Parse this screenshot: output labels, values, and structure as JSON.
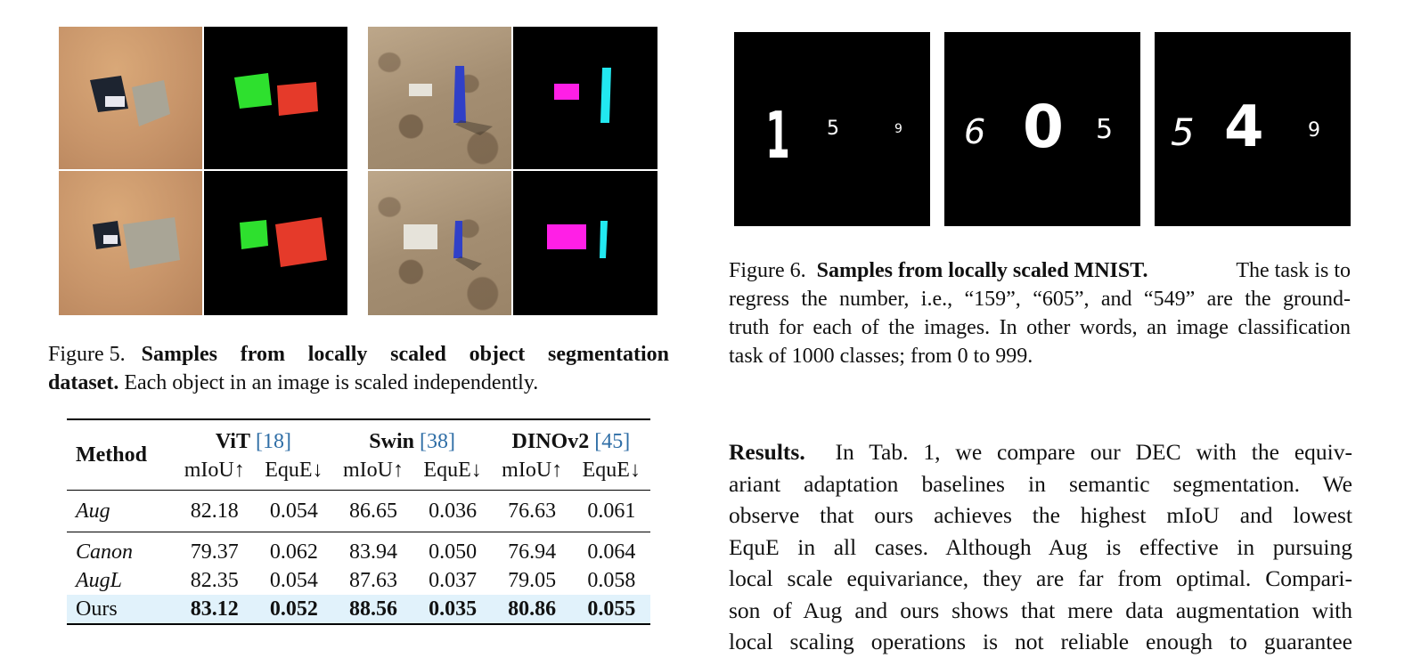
{
  "figure5": {
    "caption_label": "Figure 5.",
    "caption_bold": "Samples from locally scaled object segmentation dataset.",
    "caption_rest": "Each object in an image is scaled independently."
  },
  "figure6": {
    "caption_label": "Figure 6.",
    "caption_bold": "Samples from locally scaled MNIST.",
    "caption_rest": "The task is to regress the number, i.e., “159”, “605”, and “549” are the ground-truth for each of the images. In other words, an image classification task of 1000 classes; from 0 to 999.",
    "lines": [
      "regress the number, i.e., “159”, “605”, and “549” are the ground-",
      "truth for each of the images. In other words, an image classification",
      "task of 1000 classes; from 0 to 999."
    ],
    "panels": [
      {
        "digits": [
          "1",
          "5",
          "9"
        ]
      },
      {
        "digits": [
          "6",
          "0",
          "5"
        ]
      },
      {
        "digits": [
          "5",
          "4",
          "9"
        ]
      }
    ]
  },
  "table": {
    "method_header": "Method",
    "groups": [
      {
        "name": "ViT",
        "ref": "[18]"
      },
      {
        "name": "Swin",
        "ref": "[38]"
      },
      {
        "name": "DINOv2",
        "ref": "[45]"
      }
    ],
    "metric_headers": [
      "mIoU↑",
      "EquE↓",
      "mIoU↑",
      "EquE↓",
      "mIoU↑",
      "EquE↓"
    ],
    "rows": [
      {
        "method": "Aug",
        "values": [
          "82.18",
          "0.054",
          "86.65",
          "0.036",
          "76.63",
          "0.061"
        ]
      },
      {
        "method": "Canon",
        "values": [
          "79.37",
          "0.062",
          "83.94",
          "0.050",
          "76.94",
          "0.064"
        ]
      },
      {
        "method": "AugL",
        "values": [
          "82.35",
          "0.054",
          "87.63",
          "0.037",
          "79.05",
          "0.058"
        ]
      },
      {
        "method": "Ours",
        "values": [
          "83.12",
          "0.052",
          "88.56",
          "0.035",
          "80.86",
          "0.055"
        ]
      }
    ],
    "highlight_color": "#e1f2fb"
  },
  "results": {
    "heading": "Results.",
    "lines": [
      "In Tab. 1, we compare our DEC with the equiv-",
      "ariant adaptation baselines in semantic segmentation. We",
      "observe that ours achieves the highest mIoU and lowest",
      "EquE in all cases. Although Aug is effective in pursuing",
      "local scale equivariance, they are far from optimal. Compari-",
      "son of Aug and ours shows that mere data augmentation with",
      "local scaling operations is not reliable enough to guarantee"
    ]
  }
}
